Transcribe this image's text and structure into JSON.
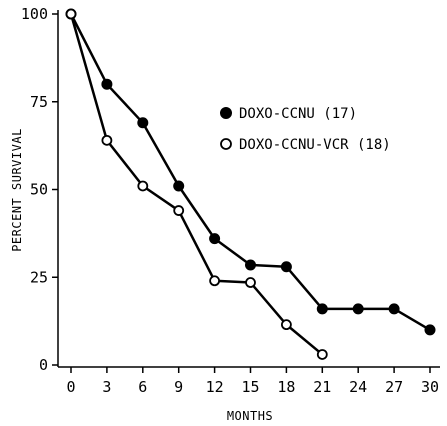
{
  "chart_data": {
    "type": "line",
    "title": "",
    "xlabel": "MONTHS",
    "ylabel": "PERCENT SURVIVAL",
    "xlim": [
      0,
      30
    ],
    "ylim": [
      0,
      100
    ],
    "x_ticks": [
      0,
      3,
      6,
      9,
      12,
      15,
      18,
      21,
      24,
      27,
      30
    ],
    "y_ticks": [
      0,
      25,
      50,
      75,
      100
    ],
    "grid": false,
    "legend_position": "right",
    "series": [
      {
        "name": "DOXO-CCNU (17)",
        "marker": "filled-circle",
        "color": "#000000",
        "x": [
          0,
          3,
          6,
          9,
          12,
          15,
          18,
          21,
          24,
          27,
          30
        ],
        "y": [
          100,
          80,
          69,
          51,
          36,
          28.5,
          28,
          16,
          16,
          16,
          10
        ]
      },
      {
        "name": "DOXO-CCNU-VCR (18)",
        "marker": "open-circle",
        "color": "#000000",
        "x": [
          0,
          3,
          6,
          9,
          12,
          15,
          18,
          21
        ],
        "y": [
          100,
          64,
          51,
          44,
          24,
          23.5,
          11.5,
          3
        ]
      }
    ]
  }
}
